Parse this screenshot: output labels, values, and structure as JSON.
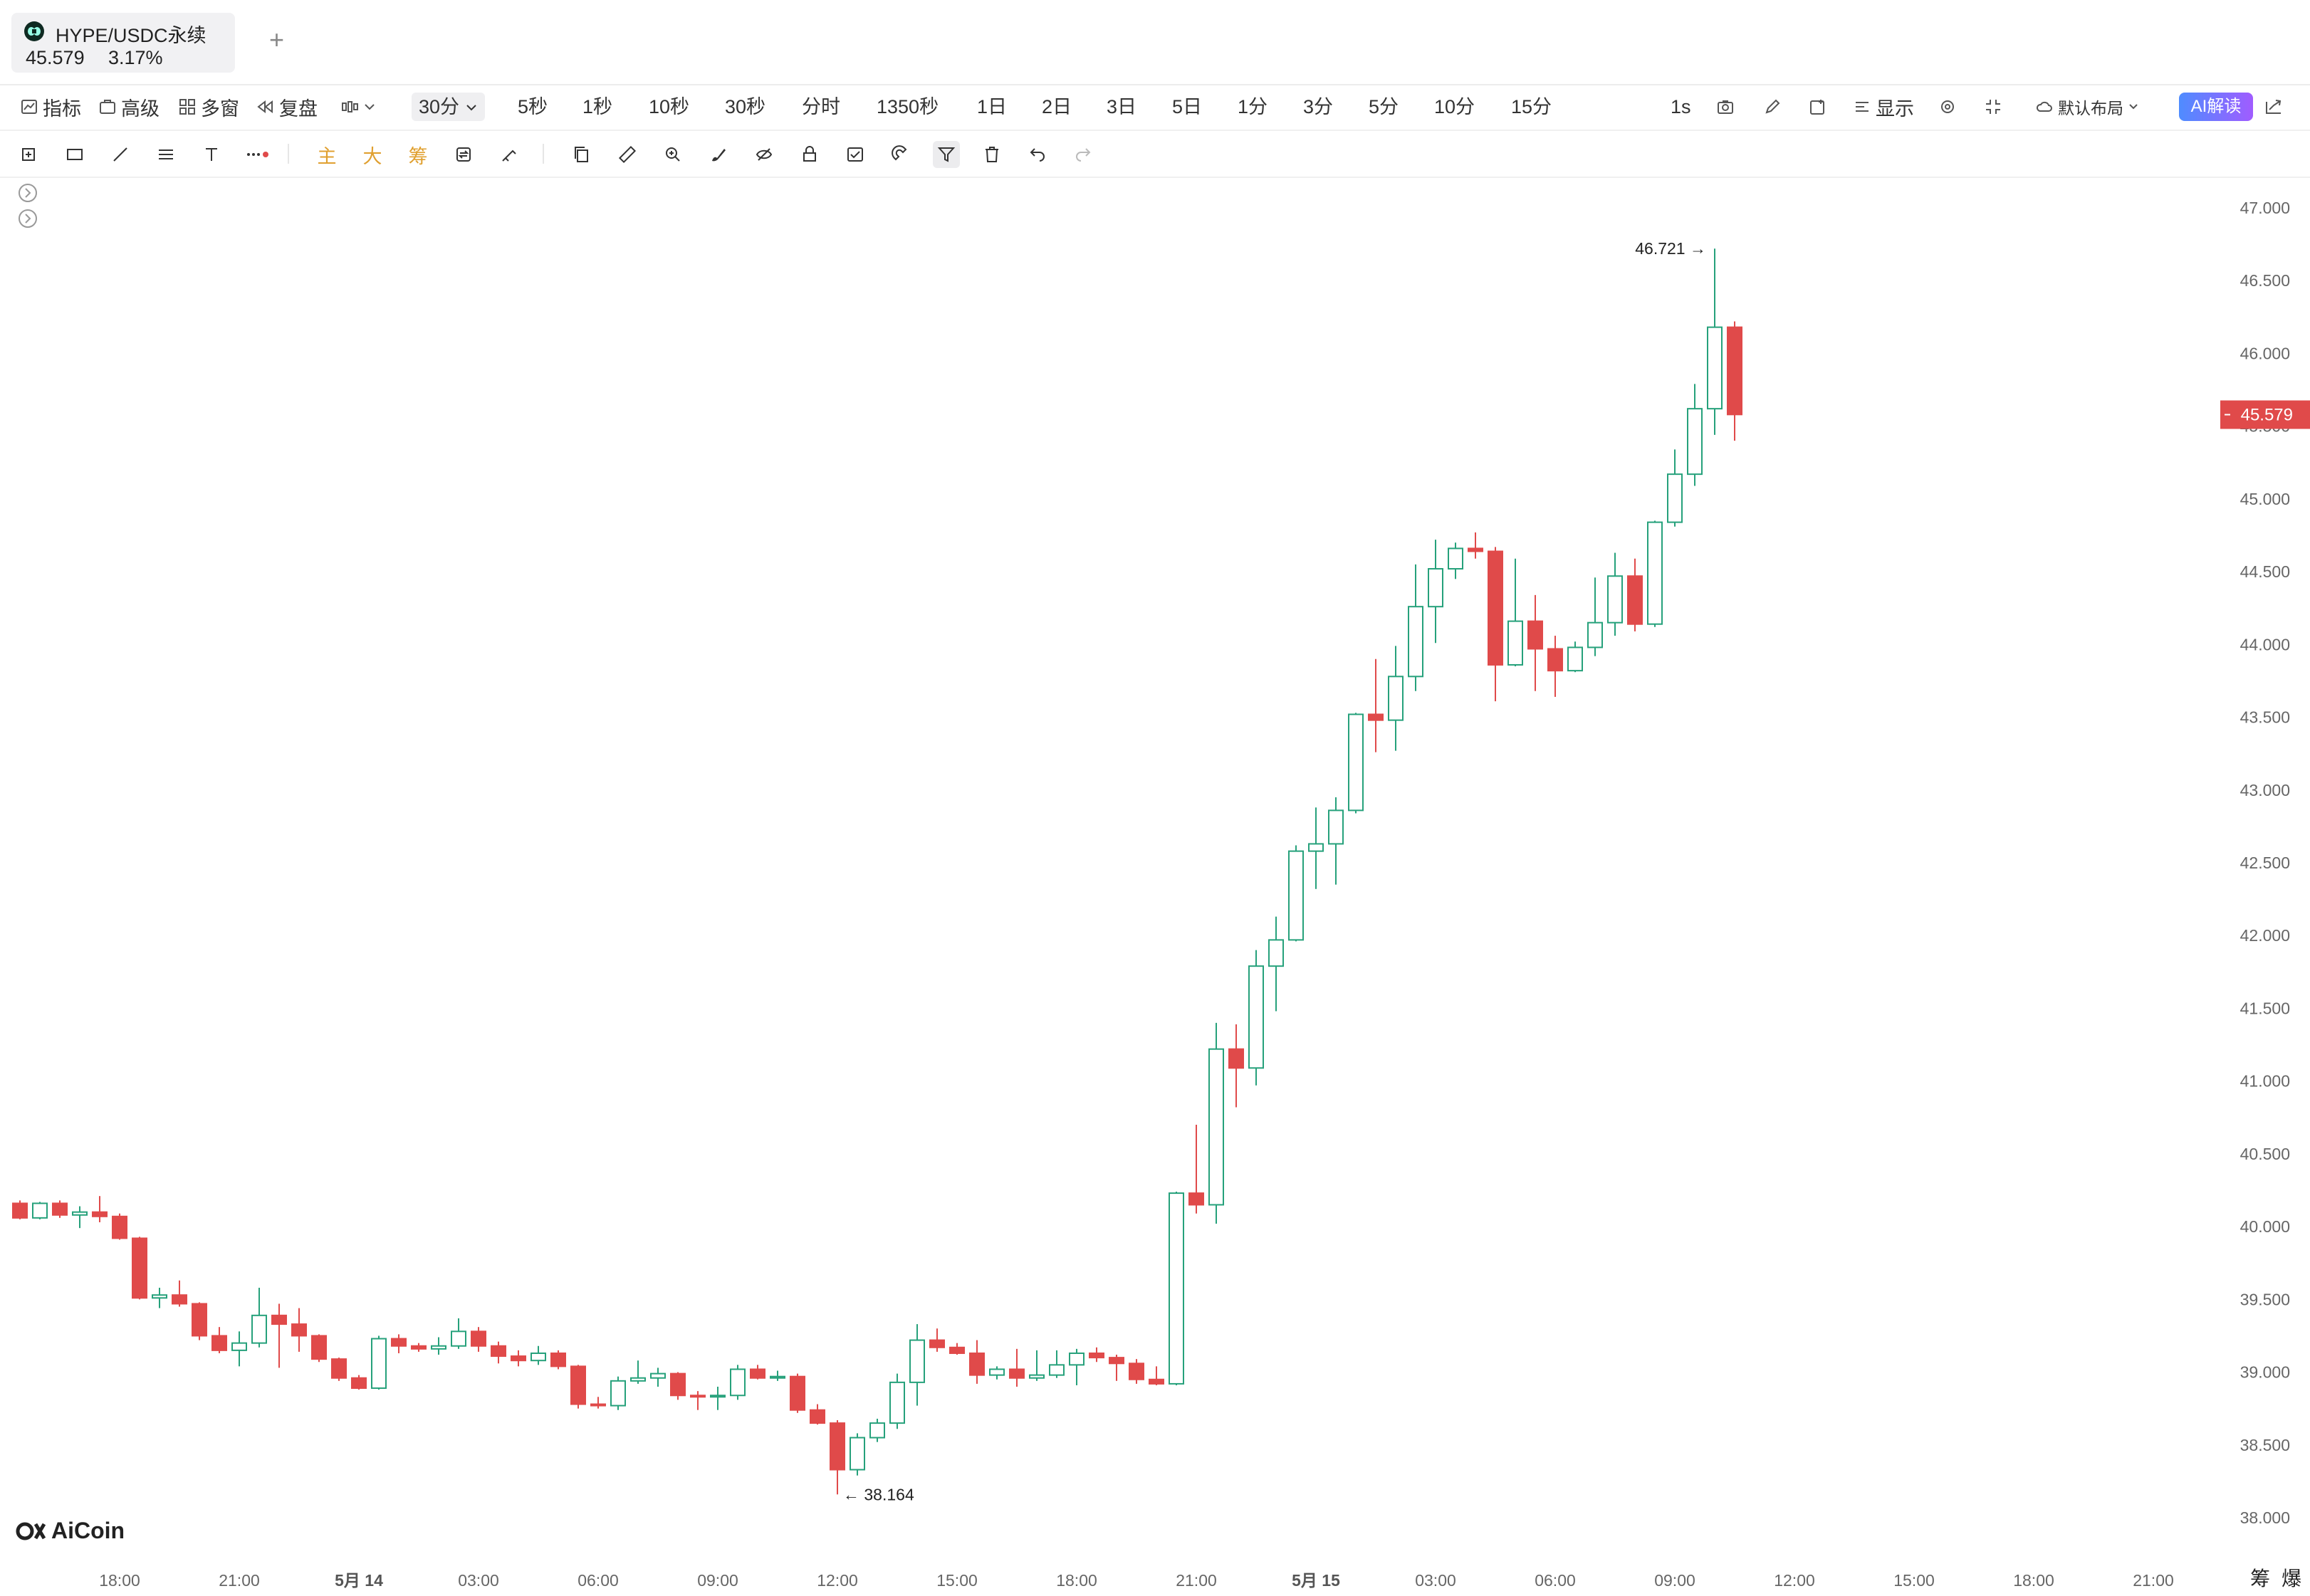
{
  "tab": {
    "title": "HYPE/USDC永续",
    "price": "45.579",
    "change": "3.17%"
  },
  "toolbar": {
    "indicators": "指标",
    "advanced": "高级",
    "multi_window": "多窗",
    "replay": "复盘",
    "interval_active": "30分",
    "intervals": [
      "5秒",
      "1秒",
      "10秒",
      "30秒",
      "分时",
      "1350秒",
      "1日",
      "2日",
      "3日",
      "5日",
      "1分",
      "3分",
      "5分",
      "10分",
      "15分"
    ],
    "refresh": "1s",
    "display": "显示",
    "layout": "默认布局",
    "ai": "AI解读"
  },
  "drawing_tools": {
    "main": "主",
    "big": "大",
    "chips": "筹"
  },
  "footer": {
    "logo": "AiCoin",
    "right1": "筹",
    "right2": "爆"
  },
  "colors": {
    "up": "#26a17b",
    "down": "#e04a4a",
    "price_tag": "#e04a4a"
  },
  "chart_data": {
    "type": "candlestick",
    "symbol": "HYPE/USDC永续",
    "interval": "30分",
    "current_price": "45.579",
    "high_annotation": "46.721",
    "low_annotation": "38.164",
    "y_ticks": [
      "47.000",
      "46.500",
      "46.000",
      "45.500",
      "45.000",
      "44.500",
      "44.000",
      "43.500",
      "43.000",
      "42.500",
      "42.000",
      "41.500",
      "41.000",
      "40.500",
      "40.000",
      "39.500",
      "39.000",
      "38.500",
      "38.000"
    ],
    "ylim": [
      37.9,
      47.1
    ],
    "x_ticks": [
      {
        "label": "18:00",
        "i": 5,
        "bold": false
      },
      {
        "label": "21:00",
        "i": 11,
        "bold": false
      },
      {
        "label": "5月 14",
        "i": 17,
        "bold": true
      },
      {
        "label": "03:00",
        "i": 23,
        "bold": false
      },
      {
        "label": "06:00",
        "i": 29,
        "bold": false
      },
      {
        "label": "09:00",
        "i": 35,
        "bold": false
      },
      {
        "label": "12:00",
        "i": 41,
        "bold": false
      },
      {
        "label": "15:00",
        "i": 47,
        "bold": false
      },
      {
        "label": "18:00",
        "i": 53,
        "bold": false
      },
      {
        "label": "21:00",
        "i": 59,
        "bold": false
      },
      {
        "label": "5月 15",
        "i": 65,
        "bold": true
      },
      {
        "label": "03:00",
        "i": 71,
        "bold": false
      },
      {
        "label": "06:00",
        "i": 77,
        "bold": false
      },
      {
        "label": "09:00",
        "i": 83,
        "bold": false
      },
      {
        "label": "12:00",
        "i": 89,
        "bold": false
      },
      {
        "label": "15:00",
        "i": 95,
        "bold": false
      },
      {
        "label": "18:00",
        "i": 101,
        "bold": false
      },
      {
        "label": "21:00",
        "i": 107,
        "bold": false
      }
    ],
    "candles": [
      [
        40.16,
        40.18,
        40.05,
        40.06
      ],
      [
        40.06,
        40.17,
        40.05,
        40.16
      ],
      [
        40.16,
        40.18,
        40.06,
        40.08
      ],
      [
        40.08,
        40.14,
        39.99,
        40.1
      ],
      [
        40.1,
        40.21,
        40.03,
        40.07
      ],
      [
        40.07,
        40.09,
        39.91,
        39.92
      ],
      [
        39.92,
        39.93,
        39.5,
        39.51
      ],
      [
        39.51,
        39.58,
        39.44,
        39.53
      ],
      [
        39.53,
        39.63,
        39.45,
        39.47
      ],
      [
        39.47,
        39.48,
        39.22,
        39.25
      ],
      [
        39.25,
        39.31,
        39.13,
        39.15
      ],
      [
        39.15,
        39.28,
        39.04,
        39.2
      ],
      [
        39.2,
        39.58,
        39.17,
        39.39
      ],
      [
        39.39,
        39.47,
        39.03,
        39.33
      ],
      [
        39.33,
        39.44,
        39.14,
        39.25
      ],
      [
        39.25,
        39.26,
        39.07,
        39.09
      ],
      [
        39.09,
        39.1,
        38.94,
        38.96
      ],
      [
        38.96,
        38.98,
        38.88,
        38.89
      ],
      [
        38.89,
        39.25,
        38.88,
        39.23
      ],
      [
        39.23,
        39.26,
        39.13,
        39.18
      ],
      [
        39.18,
        39.2,
        39.14,
        39.16
      ],
      [
        39.16,
        39.24,
        39.12,
        39.18
      ],
      [
        39.18,
        39.37,
        39.16,
        39.28
      ],
      [
        39.28,
        39.31,
        39.14,
        39.18
      ],
      [
        39.18,
        39.21,
        39.06,
        39.11
      ],
      [
        39.11,
        39.15,
        39.04,
        39.08
      ],
      [
        39.08,
        39.18,
        39.05,
        39.13
      ],
      [
        39.13,
        39.15,
        39.02,
        39.04
      ],
      [
        39.04,
        39.05,
        38.75,
        38.78
      ],
      [
        38.78,
        38.83,
        38.75,
        38.77
      ],
      [
        38.77,
        38.97,
        38.74,
        38.94
      ],
      [
        38.94,
        39.08,
        38.92,
        38.96
      ],
      [
        38.96,
        39.03,
        38.9,
        38.99
      ],
      [
        38.99,
        39.0,
        38.81,
        38.84
      ],
      [
        38.84,
        38.87,
        38.74,
        38.83
      ],
      [
        38.83,
        38.9,
        38.74,
        38.84
      ],
      [
        38.84,
        39.05,
        38.81,
        39.02
      ],
      [
        39.02,
        39.05,
        38.95,
        38.96
      ],
      [
        38.96,
        39.01,
        38.94,
        38.97
      ],
      [
        38.97,
        38.99,
        38.72,
        38.74
      ],
      [
        38.74,
        38.78,
        38.64,
        38.65
      ],
      [
        38.65,
        38.67,
        38.16,
        38.33
      ],
      [
        38.33,
        38.58,
        38.29,
        38.55
      ],
      [
        38.55,
        38.68,
        38.52,
        38.65
      ],
      [
        38.65,
        38.99,
        38.61,
        38.93
      ],
      [
        38.93,
        39.33,
        38.77,
        39.22
      ],
      [
        39.22,
        39.3,
        39.14,
        39.17
      ],
      [
        39.17,
        39.2,
        39.12,
        39.13
      ],
      [
        39.13,
        39.22,
        38.92,
        38.98
      ],
      [
        38.98,
        39.04,
        38.95,
        39.02
      ],
      [
        39.02,
        39.16,
        38.9,
        38.96
      ],
      [
        38.96,
        39.15,
        38.94,
        38.98
      ],
      [
        38.98,
        39.15,
        38.96,
        39.05
      ],
      [
        39.05,
        39.16,
        38.91,
        39.13
      ],
      [
        39.13,
        39.17,
        39.07,
        39.1
      ],
      [
        39.1,
        39.12,
        38.94,
        39.06
      ],
      [
        39.06,
        39.09,
        38.92,
        38.95
      ],
      [
        38.95,
        39.04,
        38.91,
        38.92
      ],
      [
        38.92,
        40.24,
        38.91,
        40.23
      ],
      [
        40.23,
        40.7,
        40.09,
        40.15
      ],
      [
        40.15,
        41.4,
        40.02,
        41.22
      ],
      [
        41.22,
        41.39,
        40.82,
        41.09
      ],
      [
        41.09,
        41.9,
        40.97,
        41.79
      ],
      [
        41.79,
        42.13,
        41.48,
        41.97
      ],
      [
        41.97,
        42.62,
        41.96,
        42.58
      ],
      [
        42.58,
        42.88,
        42.32,
        42.63
      ],
      [
        42.63,
        42.95,
        42.35,
        42.86
      ],
      [
        42.86,
        43.53,
        42.84,
        43.52
      ],
      [
        43.52,
        43.9,
        43.26,
        43.48
      ],
      [
        43.48,
        43.99,
        43.27,
        43.78
      ],
      [
        43.78,
        44.55,
        43.68,
        44.26
      ],
      [
        44.26,
        44.72,
        44.01,
        44.52
      ],
      [
        44.52,
        44.7,
        44.45,
        44.66
      ],
      [
        44.66,
        44.77,
        44.59,
        44.64
      ],
      [
        44.64,
        44.67,
        43.61,
        43.86
      ],
      [
        43.86,
        44.59,
        43.85,
        44.16
      ],
      [
        44.16,
        44.34,
        43.68,
        43.97
      ],
      [
        43.97,
        44.06,
        43.64,
        43.82
      ],
      [
        43.82,
        44.02,
        43.81,
        43.98
      ],
      [
        43.98,
        44.46,
        43.92,
        44.15
      ],
      [
        44.15,
        44.63,
        44.06,
        44.47
      ],
      [
        44.47,
        44.59,
        44.09,
        44.14
      ],
      [
        44.14,
        44.85,
        44.12,
        44.84
      ],
      [
        44.84,
        45.34,
        44.81,
        45.17
      ],
      [
        45.17,
        45.79,
        45.09,
        45.62
      ],
      [
        45.62,
        46.72,
        45.44,
        46.18
      ],
      [
        46.18,
        46.22,
        45.4,
        45.58
      ]
    ]
  }
}
